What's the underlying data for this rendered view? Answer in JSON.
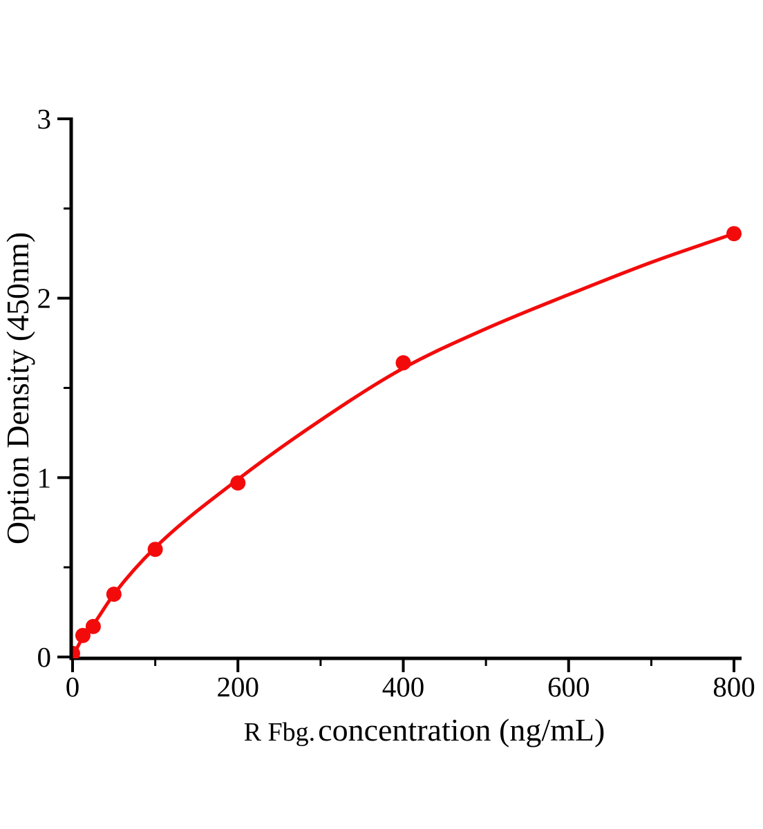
{
  "figure": {
    "background": "#ffffff"
  },
  "chart_data": {
    "type": "scatter",
    "title": "",
    "xlabel": "R Fbg. concentration (ng/mL)",
    "xlabel_small_part": "R Fbg.",
    "xlabel_main_part": " concentration (ng/mL)",
    "ylabel": "Option Density（450nm）",
    "xlim": [
      0,
      800
    ],
    "ylim": [
      0,
      3
    ],
    "x_major_ticks": [
      0,
      200,
      400,
      600,
      800
    ],
    "x_minor_ticks": [
      100,
      300,
      500,
      700
    ],
    "y_major_ticks": [
      0,
      1,
      2,
      3
    ],
    "y_minor_ticks": [
      0.5,
      1.5,
      2.5
    ],
    "grid": false,
    "legend": "none",
    "series": [
      {
        "name": "standard-points",
        "type": "scatter",
        "marker": "circle",
        "color": "#f30b0b",
        "x": [
          0,
          12.5,
          25,
          50,
          100,
          200,
          400,
          800
        ],
        "y": [
          0.02,
          0.12,
          0.17,
          0.35,
          0.6,
          0.97,
          1.64,
          2.36
        ]
      },
      {
        "name": "fit-curve",
        "type": "line",
        "color": "#f30b0b",
        "x": [
          0,
          12.5,
          25,
          50,
          100,
          200,
          300,
          400,
          500,
          600,
          700,
          800
        ],
        "y": [
          0.0,
          0.11,
          0.18,
          0.35,
          0.61,
          0.99,
          1.32,
          1.61,
          1.83,
          2.02,
          2.2,
          2.36
        ]
      }
    ],
    "axis_color": "#000000",
    "marker_color": "#f30b0b",
    "line_color": "#f30b0b"
  }
}
